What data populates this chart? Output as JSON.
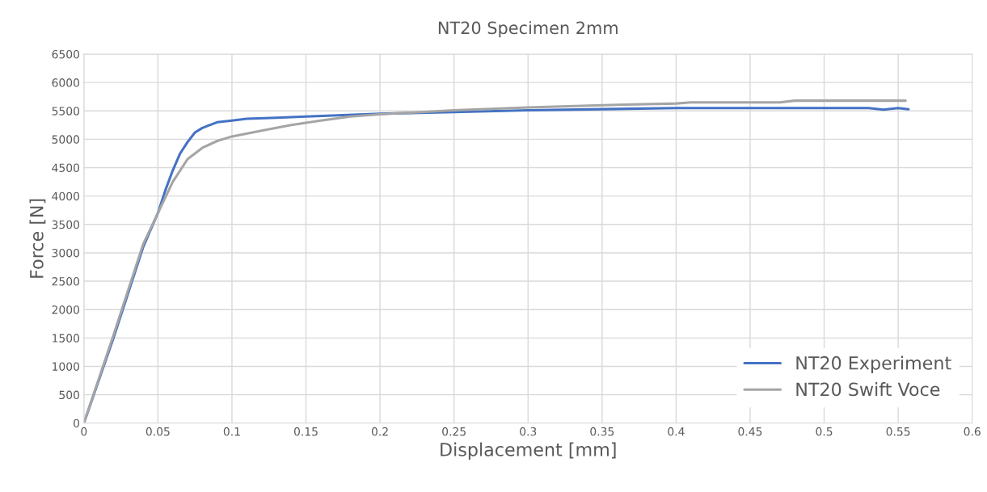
{
  "chart_data": {
    "type": "line",
    "title": "NT20 Specimen 2mm",
    "xlabel": "Displacement [mm]",
    "ylabel": "Force [N]",
    "xlim": [
      0,
      0.6
    ],
    "xticks": [
      0,
      0.05,
      0.1,
      0.15,
      0.2,
      0.25,
      0.3,
      0.35,
      0.4,
      0.45,
      0.5,
      0.55,
      0.6
    ],
    "ylim": [
      0,
      6500
    ],
    "yticks": [
      0,
      500,
      1000,
      1500,
      2000,
      2500,
      3000,
      3500,
      4000,
      4500,
      5000,
      5500,
      6000,
      6500
    ],
    "grid": true,
    "legend": "bottom right",
    "marker": "none",
    "line_style": "solid",
    "series": [
      {
        "name": "NT20 Experiment",
        "color": "#4472c4",
        "x": [
          0,
          0.02,
          0.04,
          0.05,
          0.055,
          0.06,
          0.065,
          0.07,
          0.075,
          0.08,
          0.09,
          0.1,
          0.11,
          0.13,
          0.15,
          0.2,
          0.25,
          0.3,
          0.35,
          0.4,
          0.45,
          0.5,
          0.53,
          0.54,
          0.55,
          0.557
        ],
        "values": [
          0,
          1500,
          3100,
          3700,
          4100,
          4450,
          4750,
          4950,
          5120,
          5200,
          5300,
          5330,
          5360,
          5380,
          5400,
          5450,
          5480,
          5510,
          5530,
          5550,
          5550,
          5550,
          5550,
          5520,
          5550,
          5530
        ]
      },
      {
        "name": "NT20 Swift Voce",
        "color": "#a5a5a5",
        "x": [
          0,
          0.02,
          0.04,
          0.05,
          0.06,
          0.07,
          0.08,
          0.09,
          0.1,
          0.12,
          0.14,
          0.16,
          0.18,
          0.2,
          0.25,
          0.3,
          0.35,
          0.4,
          0.41,
          0.47,
          0.48,
          0.555
        ],
        "values": [
          0,
          1550,
          3150,
          3700,
          4250,
          4650,
          4850,
          4970,
          5050,
          5150,
          5250,
          5330,
          5400,
          5440,
          5510,
          5560,
          5600,
          5630,
          5650,
          5650,
          5680,
          5680
        ]
      }
    ]
  }
}
